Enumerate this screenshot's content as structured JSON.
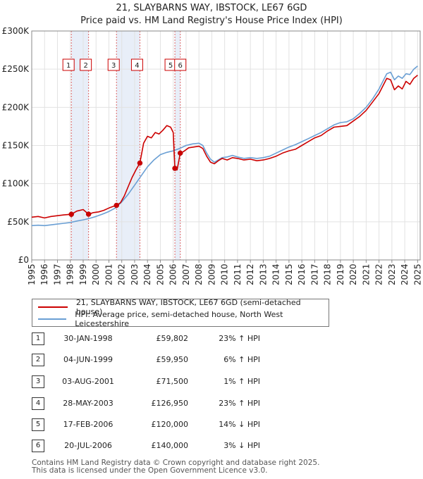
{
  "chart_data": {
    "type": "line",
    "title": "21, SLAYBARNS WAY, IBSTOCK, LE67 6GD",
    "subtitle": "Price paid vs. HM Land Registry's House Price Index (HPI)",
    "xlim": [
      1995,
      2025.2
    ],
    "ylim": [
      0,
      300000
    ],
    "y_ticks": [
      0,
      50000,
      100000,
      150000,
      200000,
      250000,
      300000
    ],
    "y_tick_labels": [
      "£0",
      "£50K",
      "£100K",
      "£150K",
      "£200K",
      "£250K",
      "£300K"
    ],
    "x_ticks": [
      1995,
      1996,
      1997,
      1998,
      1999,
      2000,
      2001,
      2002,
      2003,
      2004,
      2005,
      2006,
      2007,
      2008,
      2009,
      2010,
      2011,
      2012,
      2013,
      2014,
      2015,
      2016,
      2017,
      2018,
      2019,
      2020,
      2021,
      2022,
      2023,
      2024,
      2025
    ],
    "grid": true,
    "colors": {
      "property": "#cc0000",
      "hpi": "#6a9fd4",
      "shade": "#e8eef8",
      "vline": "#dd6666"
    },
    "series": [
      {
        "name": "21, SLAYBARNS WAY, IBSTOCK, LE67 6GD (semi-detached house)",
        "key": "property",
        "x": [
          1995.0,
          1995.5,
          1996.0,
          1996.5,
          1997.0,
          1997.5,
          1998.08,
          1998.5,
          1999.0,
          1999.42,
          1999.8,
          2000.2,
          2000.6,
          2001.0,
          2001.3,
          2001.59,
          2001.9,
          2002.2,
          2002.5,
          2002.8,
          2003.1,
          2003.41,
          2003.7,
          2004.0,
          2004.3,
          2004.6,
          2004.9,
          2005.2,
          2005.5,
          2005.8,
          2006.0,
          2006.13,
          2006.3,
          2006.55,
          2006.8,
          2007.2,
          2007.6,
          2008.0,
          2008.3,
          2008.6,
          2008.9,
          2009.2,
          2009.5,
          2009.8,
          2010.2,
          2010.6,
          2011.0,
          2011.5,
          2012.0,
          2012.5,
          2013.0,
          2013.5,
          2014.0,
          2014.5,
          2015.0,
          2015.5,
          2016.0,
          2016.5,
          2017.0,
          2017.5,
          2018.0,
          2018.5,
          2019.0,
          2019.5,
          2020.0,
          2020.5,
          2021.0,
          2021.5,
          2022.0,
          2022.3,
          2022.6,
          2022.9,
          2023.2,
          2023.5,
          2023.8,
          2024.1,
          2024.4,
          2024.7,
          2025.0
        ],
        "values": [
          56000,
          57000,
          55000,
          57000,
          58000,
          59000,
          59802,
          64000,
          66000,
          59950,
          62000,
          63000,
          65000,
          68000,
          70000,
          71500,
          75000,
          84000,
          96000,
          108000,
          118000,
          126950,
          153000,
          162000,
          160000,
          167000,
          165000,
          170000,
          176000,
          174000,
          167000,
          120000,
          118000,
          140000,
          142000,
          147000,
          148000,
          149000,
          146000,
          136000,
          128000,
          126000,
          130000,
          133000,
          131000,
          134000,
          133000,
          131000,
          132000,
          130000,
          131000,
          133000,
          136000,
          140000,
          143000,
          145000,
          150000,
          155000,
          160000,
          163000,
          169000,
          174000,
          175000,
          176000,
          182000,
          188000,
          196000,
          207000,
          218000,
          228000,
          238000,
          236000,
          223000,
          228000,
          224000,
          234000,
          230000,
          238000,
          242000
        ]
      },
      {
        "name": "HPI: Average price, semi-detached house, North West Leicestershire",
        "key": "hpi",
        "x": [
          1995.0,
          1995.5,
          1996.0,
          1996.5,
          1997.0,
          1997.5,
          1998.0,
          1998.5,
          1999.0,
          1999.5,
          2000.0,
          2000.5,
          2001.0,
          2001.5,
          2002.0,
          2002.5,
          2003.0,
          2003.5,
          2004.0,
          2004.5,
          2005.0,
          2005.5,
          2006.0,
          2006.5,
          2007.0,
          2007.5,
          2008.0,
          2008.3,
          2008.6,
          2008.9,
          2009.2,
          2009.5,
          2009.8,
          2010.2,
          2010.6,
          2011.0,
          2011.5,
          2012.0,
          2012.5,
          2013.0,
          2013.5,
          2014.0,
          2014.5,
          2015.0,
          2015.5,
          2016.0,
          2016.5,
          2017.0,
          2017.5,
          2018.0,
          2018.5,
          2019.0,
          2019.5,
          2020.0,
          2020.5,
          2021.0,
          2021.5,
          2022.0,
          2022.3,
          2022.6,
          2022.9,
          2023.2,
          2023.5,
          2023.8,
          2024.1,
          2024.4,
          2024.7,
          2025.0
        ],
        "values": [
          45000,
          45500,
          45000,
          46000,
          47000,
          48000,
          49000,
          51000,
          52500,
          54500,
          57000,
          60000,
          63500,
          68000,
          76000,
          86000,
          98000,
          110000,
          122000,
          131000,
          138000,
          141000,
          143000,
          146000,
          150000,
          152000,
          153000,
          150000,
          140000,
          132000,
          128000,
          131000,
          134000,
          135000,
          137000,
          135000,
          133000,
          134000,
          133000,
          134000,
          136000,
          140000,
          144000,
          148000,
          151000,
          155000,
          159000,
          163000,
          167000,
          172000,
          177000,
          180000,
          181000,
          185000,
          192000,
          200000,
          211000,
          224000,
          234000,
          244000,
          246000,
          236000,
          241000,
          238000,
          244000,
          243000,
          250000,
          254000
        ]
      }
    ],
    "purchase_markers": [
      {
        "label": "1",
        "x": 1998.08,
        "value": 59802
      },
      {
        "label": "2",
        "x": 1999.42,
        "value": 59950
      },
      {
        "label": "3",
        "x": 2001.59,
        "value": 71500
      },
      {
        "label": "4",
        "x": 2003.41,
        "value": 126950
      },
      {
        "label": "5",
        "x": 2006.13,
        "value": 120000
      },
      {
        "label": "6",
        "x": 2006.55,
        "value": 140000
      }
    ],
    "shaded_ranges": [
      [
        1998.08,
        1999.42
      ],
      [
        2001.59,
        2003.41
      ],
      [
        2006.13,
        2006.55
      ]
    ]
  },
  "legend": {
    "property": "21, SLAYBARNS WAY, IBSTOCK, LE67 6GD (semi-detached house)",
    "hpi": "HPI: Average price, semi-detached house, North West Leicestershire"
  },
  "transactions": [
    {
      "num": "1",
      "date": "30-JAN-1998",
      "price": "£59,802",
      "hpi": "23% ↑ HPI"
    },
    {
      "num": "2",
      "date": "04-JUN-1999",
      "price": "£59,950",
      "hpi": "6% ↑ HPI"
    },
    {
      "num": "3",
      "date": "03-AUG-2001",
      "price": "£71,500",
      "hpi": "1% ↑ HPI"
    },
    {
      "num": "4",
      "date": "28-MAY-2003",
      "price": "£126,950",
      "hpi": "23% ↑ HPI"
    },
    {
      "num": "5",
      "date": "17-FEB-2006",
      "price": "£120,000",
      "hpi": "14% ↓ HPI"
    },
    {
      "num": "6",
      "date": "20-JUL-2006",
      "price": "£140,000",
      "hpi": "3% ↓ HPI"
    }
  ],
  "footer": {
    "line1": "Contains HM Land Registry data © Crown copyright and database right 2025.",
    "line2": "This data is licensed under the Open Government Licence v3.0."
  }
}
